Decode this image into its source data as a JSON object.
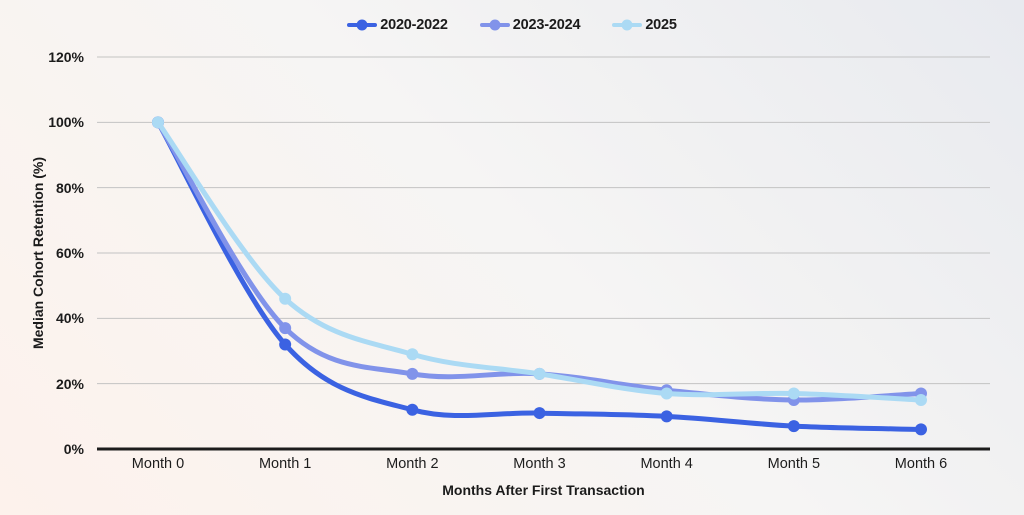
{
  "colors": {
    "grid": "#c3c3c3",
    "axis": "#1c1c1c",
    "text": "#1b1b1b",
    "background_gradient": [
      "#e8eaef",
      "#f6f5f4",
      "#fdf2ec"
    ]
  },
  "chart_data": {
    "type": "line",
    "title": "",
    "xlabel": "Months After First Transaction",
    "ylabel": "Median Cohort Retention (%)",
    "categories": [
      "Month 0",
      "Month 1",
      "Month 2",
      "Month 3",
      "Month 4",
      "Month 5",
      "Month 6"
    ],
    "series": [
      {
        "name": "2020-2022",
        "color": "#3b62e2",
        "values": [
          100,
          32,
          12,
          11,
          10,
          7,
          6
        ]
      },
      {
        "name": "2023-2024",
        "color": "#8193ea",
        "values": [
          100,
          37,
          23,
          23,
          18,
          15,
          17
        ]
      },
      {
        "name": "2025",
        "color": "#abdaf4",
        "values": [
          100,
          46,
          29,
          23,
          17,
          17,
          15
        ]
      }
    ],
    "ylim": [
      0,
      120
    ],
    "yticks": [
      "0%",
      "20%",
      "40%",
      "60%",
      "80%",
      "100%",
      "120%"
    ],
    "ytick_values": [
      0,
      20,
      40,
      60,
      80,
      100,
      120
    ],
    "grid": "horizontal",
    "legend_position": "top",
    "marker": "circle"
  }
}
